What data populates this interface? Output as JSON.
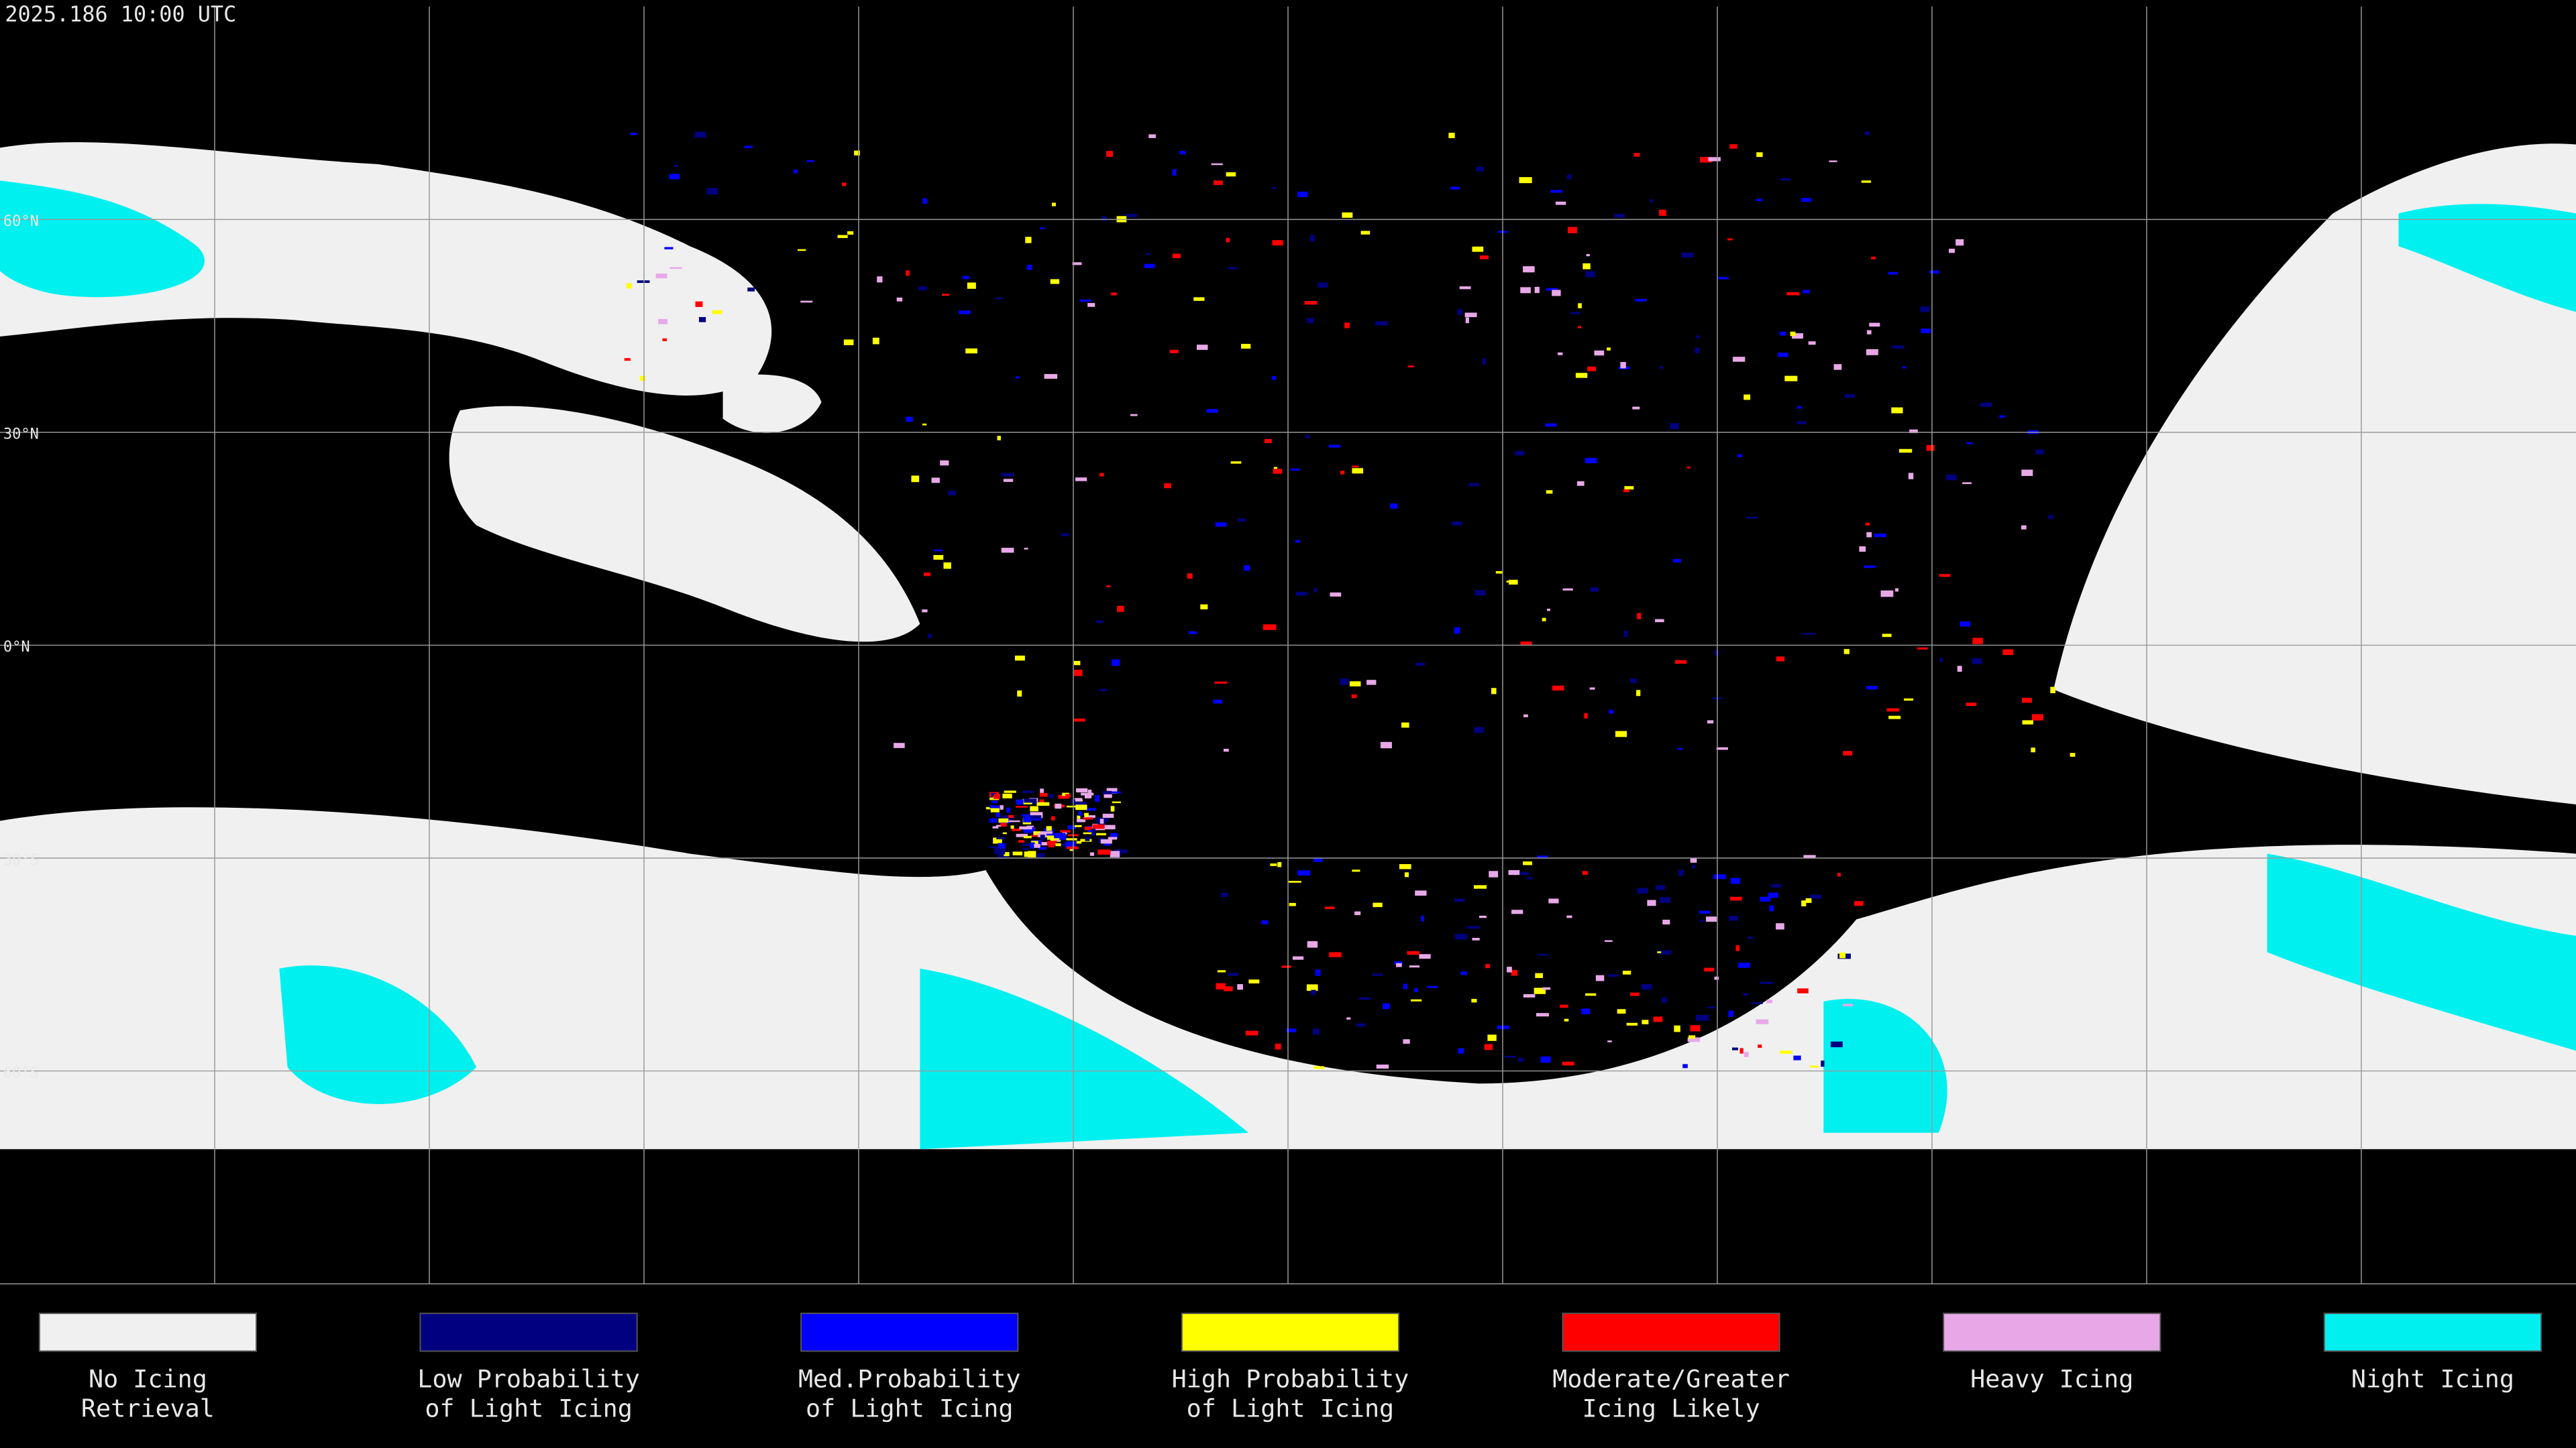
{
  "header": {
    "timestamp": "2025.186 10:00 UTC"
  },
  "map": {
    "latitude_labels": [
      "60°N",
      "30°N",
      "0°N",
      "30°S",
      "60°S"
    ]
  },
  "legend": [
    {
      "lines": [
        "No Icing",
        "Retrieval"
      ],
      "color": "#f0f0f0"
    },
    {
      "lines": [
        "Low Probability",
        "of Light Icing"
      ],
      "color": "#000080"
    },
    {
      "lines": [
        "Med.Probability",
        "of Light Icing"
      ],
      "color": "#0000ff"
    },
    {
      "lines": [
        "High Probability",
        "of Light Icing"
      ],
      "color": "#ffff00"
    },
    {
      "lines": [
        "Moderate/Greater",
        "Icing Likely"
      ],
      "color": "#ff0000"
    },
    {
      "lines": [
        "Heavy Icing"
      ],
      "color": "#e8a8e8"
    },
    {
      "lines": [
        "Night Icing"
      ],
      "color": "#00f0f0"
    }
  ]
}
